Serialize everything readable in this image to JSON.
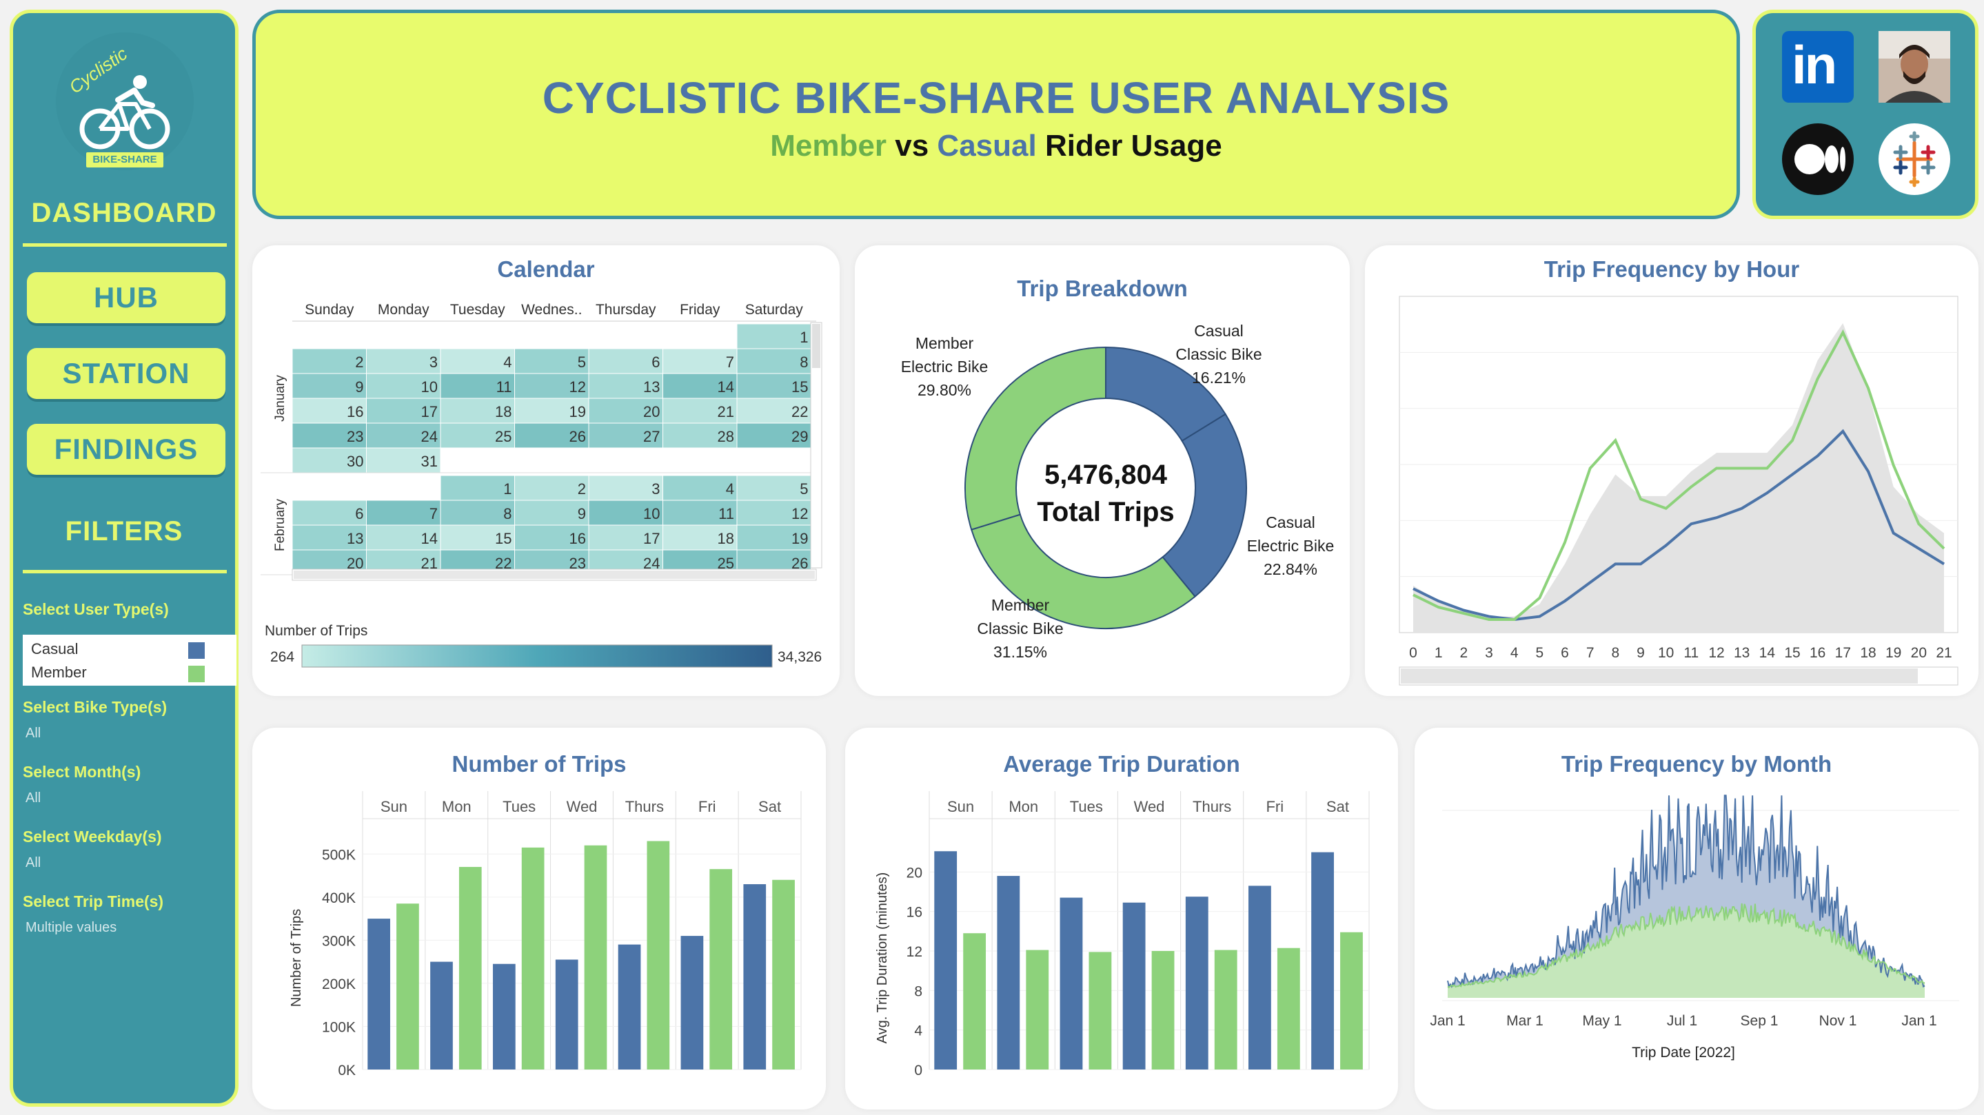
{
  "sidebar": {
    "logo_text": "Cyclistic",
    "logo_tag": "BIKE-SHARE",
    "dashboard_label": "DASHBOARD",
    "nav": {
      "hub": "HUB",
      "station": "STATION",
      "findings": "FINDINGS"
    },
    "filters_label": "FILTERS",
    "filters": [
      {
        "label": "Select User Type(s)",
        "value": ""
      },
      {
        "label": "Select Bike Type(s)",
        "value": "All"
      },
      {
        "label": "Select Month(s)",
        "value": "All"
      },
      {
        "label": "Select Weekday(s)",
        "value": "All"
      },
      {
        "label": "Select Trip Time(s)",
        "value": "Multiple values"
      }
    ],
    "user_types": [
      {
        "label": "Casual",
        "color": "#4c74a8"
      },
      {
        "label": "Member",
        "color": "#8dd27b"
      }
    ]
  },
  "header": {
    "title": "CYCLISTIC BIKE-SHARE USER ANALYSIS",
    "sub_member": "Member",
    "sub_vs": "vs",
    "sub_casual": "Casual",
    "sub_rest": "Rider Usage"
  },
  "socials": [
    {
      "icon": "linkedin-icon",
      "label": "in"
    },
    {
      "icon": "profile-photo",
      "label": ""
    },
    {
      "icon": "medium-icon",
      "label": ""
    },
    {
      "icon": "tableau-icon",
      "label": ""
    }
  ],
  "colors": {
    "casual": "#4c74a8",
    "member": "#8dd27b",
    "accent": "#e5f86e",
    "teal": "#3d96a3",
    "title": "#4c74a8"
  },
  "calendar": {
    "title": "Calendar",
    "weekdays": [
      "Sunday",
      "Monday",
      "Tuesday",
      "Wednes..",
      "Thursday",
      "Friday",
      "Saturday"
    ],
    "months": [
      {
        "name": "January",
        "rows": [
          [
            "",
            "",
            "",
            "",
            "",
            "",
            "1"
          ],
          [
            "2",
            "3",
            "4",
            "5",
            "6",
            "7",
            "8"
          ],
          [
            "9",
            "10",
            "11",
            "12",
            "13",
            "14",
            "15"
          ],
          [
            "16",
            "17",
            "18",
            "19",
            "20",
            "21",
            "22"
          ],
          [
            "23",
            "24",
            "25",
            "26",
            "27",
            "28",
            "29"
          ],
          [
            "30",
            "31",
            "",
            "",
            "",
            "",
            ""
          ]
        ]
      },
      {
        "name": "February",
        "rows": [
          [
            "",
            "",
            "1",
            "2",
            "3",
            "4",
            "5"
          ],
          [
            "6",
            "7",
            "8",
            "9",
            "10",
            "11",
            "12"
          ],
          [
            "13",
            "14",
            "15",
            "16",
            "17",
            "18",
            "19"
          ],
          [
            "20",
            "21",
            "22",
            "23",
            "24",
            "25",
            "26"
          ]
        ]
      }
    ],
    "legend_title": "Number of Trips",
    "legend_min": "264",
    "legend_max": "34,326"
  },
  "trip_breakdown": {
    "title": "Trip Breakdown",
    "total_value": "5,476,804",
    "total_label": "Total Trips",
    "labels": [
      {
        "line1": "Casual",
        "line2": "Classic Bike",
        "pct": "16.21%"
      },
      {
        "line1": "Casual",
        "line2": "Electric Bike",
        "pct": "22.84%"
      },
      {
        "line1": "Member",
        "line2": "Classic Bike",
        "pct": "31.15%"
      },
      {
        "line1": "Member",
        "line2": "Electric Bike",
        "pct": "29.80%"
      }
    ]
  },
  "hour_chart": {
    "title": "Trip Frequency by Hour"
  },
  "trips_chart": {
    "title": "Number of Trips"
  },
  "duration_chart": {
    "title": "Average Trip Duration"
  },
  "month_chart": {
    "title": "Trip Frequency by Month"
  },
  "chart_data": [
    {
      "type": "pie",
      "title": "Trip Breakdown",
      "categories": [
        "Casual Classic Bike",
        "Casual Electric Bike",
        "Member Classic Bike",
        "Member Electric Bike"
      ],
      "values": [
        16.21,
        22.84,
        31.15,
        29.8
      ],
      "colors": [
        "#4c74a8",
        "#4c74a8",
        "#8dd27b",
        "#8dd27b"
      ]
    },
    {
      "type": "line",
      "title": "Trip Frequency by Hour",
      "x": [
        0,
        1,
        2,
        3,
        4,
        5,
        6,
        7,
        8,
        9,
        10,
        11,
        12,
        13,
        14,
        15,
        16,
        17,
        18,
        19,
        20,
        21
      ],
      "series": [
        {
          "name": "Casual",
          "values": [
            0.12,
            0.08,
            0.05,
            0.03,
            0.02,
            0.03,
            0.08,
            0.14,
            0.2,
            0.2,
            0.26,
            0.33,
            0.35,
            0.38,
            0.43,
            0.49,
            0.55,
            0.63,
            0.5,
            0.3,
            0.25,
            0.2
          ]
        },
        {
          "name": "Member",
          "values": [
            0.1,
            0.06,
            0.04,
            0.02,
            0.02,
            0.09,
            0.27,
            0.51,
            0.6,
            0.41,
            0.38,
            0.45,
            0.51,
            0.51,
            0.51,
            0.6,
            0.8,
            0.95,
            0.77,
            0.52,
            0.33,
            0.25
          ]
        },
        {
          "name": "All",
          "values": [
            0.13,
            0.08,
            0.05,
            0.03,
            0.03,
            0.07,
            0.2,
            0.36,
            0.49,
            0.42,
            0.42,
            0.5,
            0.56,
            0.56,
            0.56,
            0.65,
            0.86,
            0.98,
            0.76,
            0.45,
            0.36,
            0.3
          ]
        }
      ],
      "xlim": [
        0,
        21
      ],
      "grid": true
    },
    {
      "type": "bar",
      "title": "Number of Trips",
      "ylabel": "Number of Trips",
      "categories": [
        "Sun",
        "Mon",
        "Tues",
        "Wed",
        "Thurs",
        "Fri",
        "Sat"
      ],
      "yticks": [
        "0K",
        "100K",
        "200K",
        "300K",
        "400K",
        "500K"
      ],
      "ylim": [
        0,
        550000
      ],
      "series": [
        {
          "name": "Casual",
          "values": [
            350000,
            250000,
            245000,
            255000,
            290000,
            310000,
            430000
          ]
        },
        {
          "name": "Member",
          "values": [
            385000,
            470000,
            515000,
            520000,
            530000,
            465000,
            440000
          ]
        }
      ]
    },
    {
      "type": "bar",
      "title": "Average Trip Duration",
      "ylabel": "Avg. Trip Duration (minutes)",
      "categories": [
        "Sun",
        "Mon",
        "Tues",
        "Wed",
        "Thurs",
        "Fri",
        "Sat"
      ],
      "yticks": [
        "0",
        "4",
        "8",
        "12",
        "16",
        "20"
      ],
      "ylim": [
        0,
        24
      ],
      "series": [
        {
          "name": "Casual",
          "values": [
            22.1,
            19.6,
            17.4,
            16.9,
            17.5,
            18.6,
            22.0
          ]
        },
        {
          "name": "Member",
          "values": [
            13.8,
            12.1,
            11.9,
            12.0,
            12.1,
            12.3,
            13.9
          ]
        }
      ]
    },
    {
      "type": "area",
      "title": "Trip Frequency by Month",
      "xlabel": "Trip Date [2022]",
      "xticks": [
        "Jan 1",
        "Mar 1",
        "May 1",
        "Jul 1",
        "Sep 1",
        "Nov 1",
        "Jan 1"
      ],
      "series": [
        {
          "name": "Casual",
          "envelope": [
            0.08,
            0.12,
            0.18,
            0.3,
            0.55,
            0.85,
            0.92,
            0.88,
            0.75,
            0.45,
            0.18,
            0.08
          ]
        },
        {
          "name": "Member",
          "envelope": [
            0.06,
            0.09,
            0.14,
            0.24,
            0.36,
            0.44,
            0.46,
            0.46,
            0.42,
            0.32,
            0.18,
            0.08
          ]
        }
      ]
    }
  ]
}
